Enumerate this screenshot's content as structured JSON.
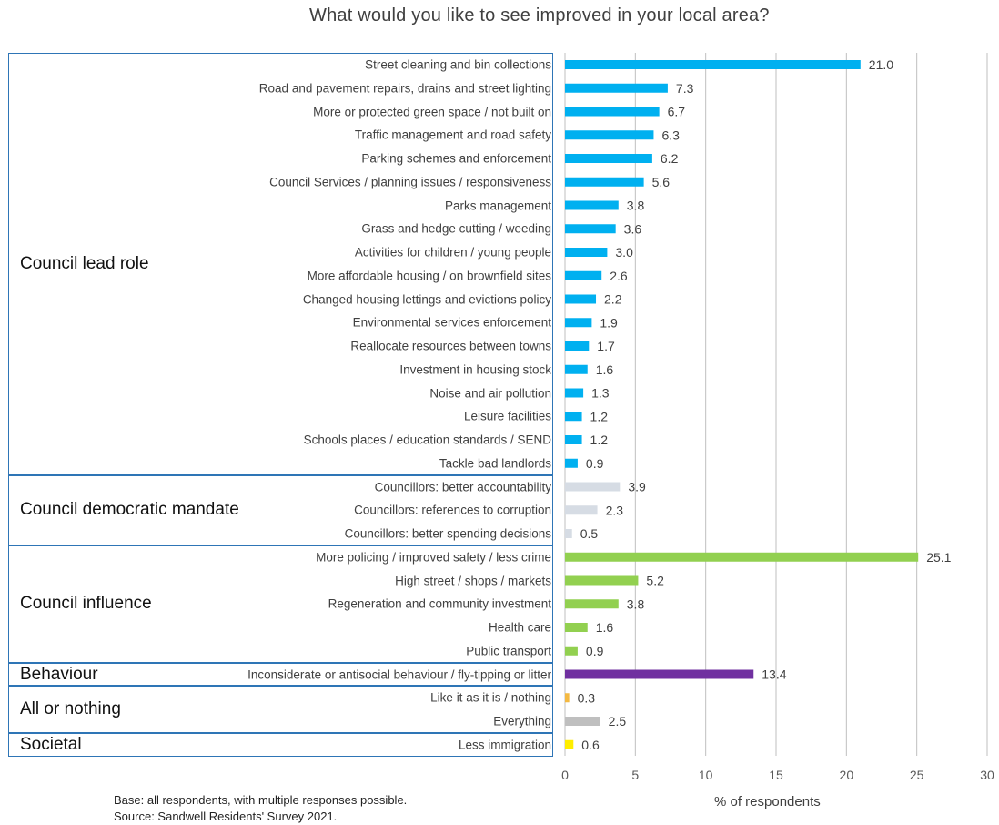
{
  "title": "What would you like to see improved in your local area?",
  "footnote": {
    "base": "Base: all respondents, with multiple responses possible.",
    "source": "Source: Sandwell Residents' Survey 2021."
  },
  "groups": [
    {
      "label": "Council lead role",
      "start": 0,
      "end": 17
    },
    {
      "label": "Council democratic mandate",
      "start": 18,
      "end": 20
    },
    {
      "label": "Council influence",
      "start": 21,
      "end": 25
    },
    {
      "label": "Behaviour",
      "start": 26,
      "end": 26
    },
    {
      "label": "All or nothing",
      "start": 27,
      "end": 28
    },
    {
      "label": "Societal",
      "start": 29,
      "end": 29
    }
  ],
  "chart_data": {
    "type": "bar",
    "orientation": "horizontal",
    "title": "What would you like to see improved in your local area?",
    "xlabel": "% of respondents",
    "ylabel": "",
    "xlim": [
      0,
      30
    ],
    "xticks": [
      0,
      5,
      10,
      15,
      20,
      25,
      30
    ],
    "grid": true,
    "categories": [
      "Street cleaning and bin collections",
      "Road and pavement repairs, drains and street lighting",
      "More or protected green space / not built on",
      "Traffic management and road safety",
      "Parking schemes and enforcement",
      "Council Services / planning issues / responsiveness",
      "Parks management",
      "Grass and hedge cutting / weeding",
      "Activities for children / young people",
      "More affordable housing / on brownfield sites",
      "Changed housing lettings and evictions policy",
      "Environmental services enforcement",
      "Reallocate resources between towns",
      "Investment in housing stock",
      "Noise and air pollution",
      "Leisure facilities",
      "Schools places / education standards / SEND",
      "Tackle bad landlords",
      "Councillors: better accountability",
      "Councillors: references to corruption",
      "Councillors: better spending decisions",
      "More policing / improved safety / less crime",
      "High street / shops / markets",
      "Regeneration and community investment",
      "Health care",
      "Public transport",
      "Inconsiderate or antisocial behaviour / fly-tipping or litter",
      "Like it as it is / nothing",
      "Everything",
      "Less immigration"
    ],
    "values": [
      21.0,
      7.3,
      6.7,
      6.3,
      6.2,
      5.6,
      3.8,
      3.6,
      3.0,
      2.6,
      2.2,
      1.9,
      1.7,
      1.6,
      1.3,
      1.2,
      1.2,
      0.9,
      3.9,
      2.3,
      0.5,
      25.1,
      5.2,
      3.8,
      1.6,
      0.9,
      13.4,
      0.3,
      2.5,
      0.6
    ],
    "value_labels": [
      "21.0",
      "7.3",
      "6.7",
      "6.3",
      "6.2",
      "5.6",
      "3.8",
      "3.6",
      "3.0",
      "2.6",
      "2.2",
      "1.9",
      "1.7",
      "1.6",
      "1.3",
      "1.2",
      "1.2",
      "0.9",
      "3.9",
      "2.3",
      "0.5",
      "25.1",
      "5.2",
      "3.8",
      "1.6",
      "0.9",
      "13.4",
      "0.3",
      "2.5",
      "0.6"
    ],
    "colors": [
      "#00b0f0",
      "#00b0f0",
      "#00b0f0",
      "#00b0f0",
      "#00b0f0",
      "#00b0f0",
      "#00b0f0",
      "#00b0f0",
      "#00b0f0",
      "#00b0f0",
      "#00b0f0",
      "#00b0f0",
      "#00b0f0",
      "#00b0f0",
      "#00b0f0",
      "#00b0f0",
      "#00b0f0",
      "#00b0f0",
      "#d6dce4",
      "#d6dce4",
      "#d6dce4",
      "#92d050",
      "#92d050",
      "#92d050",
      "#92d050",
      "#92d050",
      "#7030a0",
      "#f4b942",
      "#bfbfbf",
      "#ffee00"
    ]
  }
}
